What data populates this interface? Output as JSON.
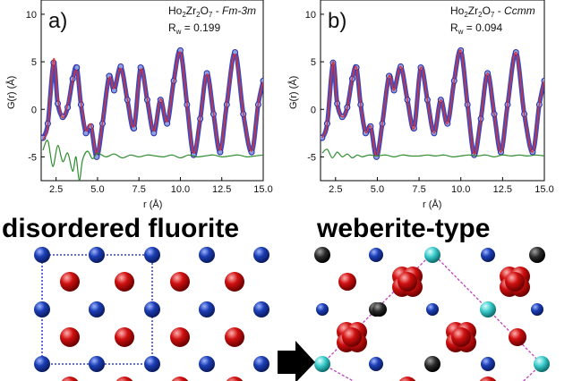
{
  "chart_data": [
    {
      "type": "line",
      "panel_label": "a)",
      "formula": {
        "prefix": "Ho",
        "s1": "2",
        "mid1": "Zr",
        "s2": "2",
        "mid2": "O",
        "s3": "7",
        "dash": " - ",
        "space_group": "Fm-3m"
      },
      "rw_text": "R",
      "rw_sub": "w",
      "rw_value": " = 0.199",
      "xlabel": "r (Å)",
      "ylabel": "G(r) (Å)",
      "xlim": [
        1.6,
        15.0
      ],
      "ylim": [
        -7.5,
        11.5
      ],
      "xticks": [
        "2.5",
        "5.0",
        "7.5",
        "10.0",
        "12.5",
        "15.0"
      ],
      "yticks": [
        "10",
        "5",
        "0",
        "-5"
      ],
      "series": [
        {
          "role": "observed (circles)",
          "color": "#2a2aa8",
          "x": [
            1.7,
            2.0,
            2.35,
            2.6,
            2.9,
            3.2,
            3.5,
            3.75,
            4.0,
            4.3,
            4.6,
            4.95,
            5.3,
            5.7,
            6.0,
            6.4,
            6.8,
            7.2,
            7.6,
            8.0,
            8.4,
            8.8,
            9.2,
            9.6,
            10.0,
            10.4,
            10.8,
            11.2,
            11.6,
            12.0,
            12.4,
            12.8,
            13.3,
            13.8,
            14.3,
            14.7,
            15.0
          ],
          "y": [
            -3,
            -1.5,
            4.9,
            0.6,
            -0.8,
            0.2,
            3.2,
            4.4,
            0.5,
            -2.5,
            -1.8,
            -5.0,
            -1.5,
            3.5,
            2.0,
            4.5,
            1.0,
            -2.0,
            4.4,
            1.0,
            -2.5,
            1.0,
            -1.5,
            3.0,
            6.2,
            0.5,
            -4.8,
            -1.0,
            3.8,
            -0.5,
            -4.5,
            0.5,
            6.0,
            -0.5,
            -4.5,
            0.5,
            3.0
          ]
        },
        {
          "role": "calculated",
          "color": "#e03030",
          "x": [
            1.7,
            2.0,
            2.35,
            2.6,
            2.9,
            3.2,
            3.5,
            3.75,
            4.0,
            4.3,
            4.6,
            4.95,
            5.3,
            5.7,
            6.0,
            6.4,
            6.8,
            7.2,
            7.6,
            8.0,
            8.4,
            8.8,
            9.2,
            9.6,
            10.0,
            10.4,
            10.8,
            11.2,
            11.6,
            12.0,
            12.4,
            12.8,
            13.3,
            13.8,
            14.3,
            14.7,
            15.0
          ],
          "y": [
            -3.2,
            -1.7,
            5.3,
            1.2,
            -0.9,
            0.5,
            3.0,
            4.0,
            0.8,
            -2.2,
            -1.6,
            -4.7,
            -1.4,
            3.3,
            2.2,
            4.3,
            1.1,
            -1.8,
            4.2,
            1.1,
            -2.3,
            1.1,
            -1.3,
            2.9,
            6.0,
            0.6,
            -4.6,
            -0.9,
            3.7,
            -0.4,
            -4.3,
            0.6,
            5.8,
            -0.4,
            -4.4,
            0.6,
            2.9
          ]
        },
        {
          "role": "difference",
          "color": "#2e8b2e",
          "x": [
            1.7,
            2.0,
            2.3,
            2.6,
            2.9,
            3.2,
            3.5,
            3.7,
            3.9,
            4.1,
            4.4,
            4.7,
            5.0,
            5.5,
            6.0,
            6.5,
            7.0,
            7.5,
            8.0,
            8.5,
            9.0,
            9.5,
            10.0,
            10.5,
            11.0,
            11.5,
            12.0,
            12.5,
            13.0,
            13.5,
            14.0,
            14.5,
            15.0
          ],
          "y": [
            -4.3,
            -3.3,
            -6.0,
            -3.8,
            -5.5,
            -4.6,
            -6.5,
            -5.0,
            -7.5,
            -5.3,
            -4.4,
            -5.2,
            -4.6,
            -5.0,
            -4.7,
            -5.1,
            -4.8,
            -5.0,
            -4.8,
            -4.9,
            -5.0,
            -4.8,
            -5.1,
            -4.8,
            -5.0,
            -4.9,
            -4.8,
            -5.0,
            -4.9,
            -4.8,
            -5.0,
            -4.9,
            -4.8
          ]
        }
      ]
    },
    {
      "type": "line",
      "panel_label": "b)",
      "formula": {
        "prefix": "Ho",
        "s1": "2",
        "mid1": "Zr",
        "s2": "2",
        "mid2": "O",
        "s3": "7",
        "dash": " - ",
        "space_group": "Ccmm"
      },
      "rw_text": "R",
      "rw_sub": "w",
      "rw_value": " = 0.094",
      "xlabel": "r (Å)",
      "ylabel": "G(r) (Å)",
      "xlim": [
        1.6,
        15.0
      ],
      "ylim": [
        -7.5,
        11.5
      ],
      "xticks": [
        "2.5",
        "5.0",
        "7.5",
        "10.0",
        "12.5",
        "15.0"
      ],
      "yticks": [
        "10",
        "5",
        "0",
        "-5"
      ],
      "series": [
        {
          "role": "observed (circles)",
          "color": "#2a2aa8",
          "x": [
            1.7,
            2.0,
            2.35,
            2.6,
            2.9,
            3.2,
            3.5,
            3.75,
            4.0,
            4.3,
            4.6,
            4.95,
            5.3,
            5.7,
            6.0,
            6.4,
            6.8,
            7.2,
            7.6,
            8.0,
            8.4,
            8.8,
            9.2,
            9.6,
            10.0,
            10.4,
            10.8,
            11.2,
            11.6,
            12.0,
            12.4,
            12.8,
            13.3,
            13.8,
            14.3,
            14.7,
            15.0
          ],
          "y": [
            -3,
            -1.5,
            4.9,
            0.6,
            -0.8,
            0.2,
            3.2,
            4.4,
            0.5,
            -2.5,
            -1.8,
            -5.0,
            -1.5,
            3.5,
            2.0,
            4.5,
            1.0,
            -2.0,
            4.4,
            1.0,
            -2.5,
            1.0,
            -1.5,
            3.0,
            6.2,
            0.5,
            -4.8,
            -1.0,
            3.8,
            -0.5,
            -4.5,
            0.5,
            6.0,
            -0.5,
            -4.5,
            0.5,
            3.0
          ]
        },
        {
          "role": "calculated",
          "color": "#e03030",
          "x": [
            1.7,
            2.0,
            2.35,
            2.6,
            2.9,
            3.2,
            3.5,
            3.75,
            4.0,
            4.3,
            4.6,
            4.95,
            5.3,
            5.7,
            6.0,
            6.4,
            6.8,
            7.2,
            7.6,
            8.0,
            8.4,
            8.8,
            9.2,
            9.6,
            10.0,
            10.4,
            10.8,
            11.2,
            11.6,
            12.0,
            12.4,
            12.8,
            13.3,
            13.8,
            14.3,
            14.7,
            15.0
          ],
          "y": [
            -3.0,
            -1.5,
            5.0,
            0.6,
            -0.8,
            0.2,
            3.2,
            4.4,
            0.5,
            -2.4,
            -1.8,
            -4.9,
            -1.5,
            3.5,
            2.0,
            4.5,
            1.0,
            -2.0,
            4.4,
            1.0,
            -2.5,
            1.0,
            -1.5,
            3.0,
            6.2,
            0.5,
            -4.7,
            -1.0,
            3.8,
            -0.5,
            -4.5,
            0.5,
            6.0,
            -0.5,
            -4.5,
            0.5,
            3.0
          ]
        },
        {
          "role": "difference",
          "color": "#2e8b2e",
          "x": [
            1.7,
            2.0,
            2.3,
            2.6,
            2.9,
            3.2,
            3.5,
            3.8,
            4.1,
            4.5,
            5.0,
            5.5,
            6.0,
            6.5,
            7.0,
            7.5,
            8.0,
            8.5,
            9.0,
            9.5,
            10.0,
            10.5,
            11.0,
            11.5,
            12.0,
            12.5,
            13.0,
            13.5,
            14.0,
            14.5,
            15.0
          ],
          "y": [
            -4.6,
            -4.2,
            -5.1,
            -4.5,
            -5.0,
            -4.7,
            -5.1,
            -4.8,
            -5.0,
            -4.8,
            -4.9,
            -4.8,
            -5.0,
            -4.8,
            -4.9,
            -4.9,
            -4.8,
            -4.9,
            -4.8,
            -5.0,
            -4.9,
            -4.8,
            -4.9,
            -4.8,
            -5.0,
            -4.8,
            -4.9,
            -4.8,
            -4.9,
            -4.8,
            -4.9
          ]
        }
      ]
    }
  ],
  "captions": {
    "left": "disordered fluorite",
    "right": "weberite-type"
  },
  "colors": {
    "blue_atom": "#1c3fb5",
    "red_atom": "#d01010",
    "cyan_atom": "#38c8c8",
    "black_atom": "#2a2a2a",
    "fluorite_cell": "#3040c0",
    "weberite_cell": "#c040c0",
    "arrow": "#000000"
  }
}
